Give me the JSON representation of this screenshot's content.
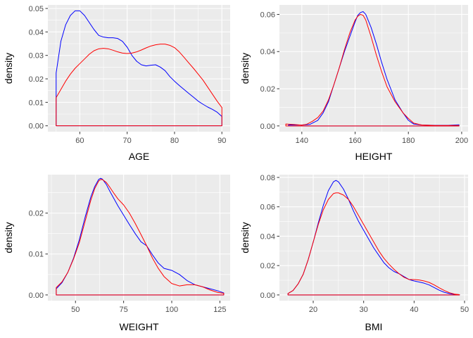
{
  "colors": {
    "panel_background": "#ebebeb",
    "grid_major": "#ffffff",
    "tick_text": "#4d4d4d",
    "series_blue": "#0000ff",
    "series_red": "#ff0000"
  },
  "chart_data": [
    {
      "type": "line",
      "subtype": "density",
      "xlabel": "AGE",
      "ylabel": "density",
      "xlim": [
        53.25,
        91.75
      ],
      "ylim": [
        -0.0025,
        0.0515
      ],
      "xticks": [
        60,
        70,
        80,
        90
      ],
      "yticks": [
        0,
        0.01,
        0.02,
        0.03,
        0.04,
        0.05
      ],
      "ytick_labels": [
        "0.00",
        "0.01",
        "0.02",
        "0.03",
        "0.04",
        "0.05"
      ],
      "grid": true,
      "series": [
        {
          "color": "#0000ff",
          "x": [
            55,
            56,
            57,
            58,
            59,
            60,
            61,
            62,
            63,
            64,
            65,
            66,
            67,
            68,
            69,
            70,
            71,
            72,
            73,
            74,
            75,
            76,
            77,
            78,
            79,
            80,
            81,
            82,
            83,
            84,
            85,
            86,
            87,
            88,
            89,
            90
          ],
          "y": [
            0.0225,
            0.036,
            0.043,
            0.047,
            0.049,
            0.049,
            0.047,
            0.044,
            0.041,
            0.0385,
            0.0378,
            0.0375,
            0.0375,
            0.0372,
            0.036,
            0.0335,
            0.03,
            0.0275,
            0.026,
            0.0255,
            0.0258,
            0.026,
            0.025,
            0.0235,
            0.021,
            0.019,
            0.0172,
            0.0155,
            0.0138,
            0.0122,
            0.0105,
            0.0092,
            0.008,
            0.007,
            0.0058,
            0.004
          ],
          "baseline": true
        },
        {
          "color": "#ff0000",
          "x": [
            55,
            56,
            57,
            58,
            59,
            60,
            61,
            62,
            63,
            64,
            65,
            66,
            67,
            68,
            69,
            70,
            71,
            72,
            73,
            74,
            75,
            76,
            77,
            78,
            79,
            80,
            81,
            82,
            83,
            84,
            85,
            86,
            87,
            88,
            89,
            90
          ],
          "y": [
            0.012,
            0.0155,
            0.019,
            0.022,
            0.0245,
            0.0265,
            0.0285,
            0.0305,
            0.032,
            0.0328,
            0.033,
            0.0328,
            0.0322,
            0.0315,
            0.031,
            0.0308,
            0.031,
            0.0315,
            0.0323,
            0.0332,
            0.034,
            0.0345,
            0.0348,
            0.0348,
            0.0343,
            0.0333,
            0.0315,
            0.0292,
            0.0268,
            0.0245,
            0.022,
            0.0195,
            0.0165,
            0.0135,
            0.0105,
            0.0078
          ],
          "baseline": true
        }
      ]
    },
    {
      "type": "line",
      "subtype": "density",
      "xlabel": "HEIGHT",
      "ylabel": "density",
      "xlim": [
        131.6,
        202.4
      ],
      "ylim": [
        -0.0031,
        0.0651
      ],
      "xticks": [
        140,
        160,
        180,
        200
      ],
      "yticks": [
        0,
        0.02,
        0.04,
        0.06
      ],
      "ytick_labels": [
        "0.00",
        "0.02",
        "0.04",
        "0.06"
      ],
      "grid": true,
      "series": [
        {
          "color": "#0000ff",
          "x": [
            135,
            140,
            143,
            146,
            148,
            150,
            152,
            154,
            156,
            158,
            160,
            161,
            162,
            163,
            164,
            166,
            168,
            170,
            172,
            175,
            178,
            180,
            182,
            185,
            190,
            195,
            199
          ],
          "y": [
            0.0005,
            0.0005,
            0.0008,
            0.003,
            0.007,
            0.013,
            0.022,
            0.031,
            0.04,
            0.048,
            0.056,
            0.0595,
            0.061,
            0.0615,
            0.06,
            0.053,
            0.044,
            0.034,
            0.025,
            0.014,
            0.007,
            0.003,
            0.001,
            0.0005,
            0.0003,
            0.0003,
            0.0006
          ],
          "baseline": true
        },
        {
          "color": "#ff0000",
          "x": [
            134,
            137,
            140,
            142,
            144,
            146,
            148,
            150,
            152,
            154,
            156,
            158,
            160,
            161,
            162,
            163,
            164,
            166,
            168,
            170,
            172,
            175,
            178,
            180,
            182,
            185,
            190,
            199
          ],
          "y": [
            0.001,
            0.0008,
            0.0004,
            0.001,
            0.0025,
            0.0045,
            0.008,
            0.014,
            0.022,
            0.031,
            0.041,
            0.05,
            0.057,
            0.059,
            0.06,
            0.0595,
            0.057,
            0.048,
            0.038,
            0.029,
            0.021,
            0.013,
            0.007,
            0.004,
            0.0015,
            0.0005,
            0.0002,
            0.0002
          ],
          "baseline": true
        }
      ]
    },
    {
      "type": "line",
      "subtype": "density",
      "xlabel": "WEIGHT",
      "ylabel": "density",
      "xlim": [
        35.65,
        130.35
      ],
      "ylim": [
        -0.0014,
        0.0294
      ],
      "xticks": [
        50,
        75,
        100,
        125
      ],
      "yticks": [
        0,
        0.01,
        0.02
      ],
      "ytick_labels": [
        "0.00",
        "0.01",
        "0.02"
      ],
      "grid": true,
      "series": [
        {
          "color": "#0000ff",
          "x": [
            40,
            43,
            46,
            49,
            52,
            55,
            58,
            60,
            62,
            63,
            64,
            66,
            68,
            70,
            72,
            75,
            78,
            81,
            84,
            87,
            90,
            93,
            96,
            100,
            104,
            108,
            112,
            116,
            120,
            124,
            127
          ],
          "y": [
            0.0015,
            0.003,
            0.0055,
            0.009,
            0.0135,
            0.019,
            0.024,
            0.0265,
            0.0282,
            0.0285,
            0.0283,
            0.027,
            0.0252,
            0.0235,
            0.0218,
            0.0195,
            0.0172,
            0.015,
            0.013,
            0.012,
            0.0098,
            0.0078,
            0.0065,
            0.006,
            0.005,
            0.0035,
            0.0025,
            0.002,
            0.0015,
            0.001,
            0.0005
          ],
          "baseline": true
        },
        {
          "color": "#ff0000",
          "x": [
            40,
            43,
            46,
            49,
            52,
            55,
            58,
            60,
            62,
            63,
            64,
            66,
            68,
            70,
            72,
            75,
            78,
            81,
            84,
            87,
            90,
            93,
            96,
            100,
            104,
            108,
            112,
            116,
            120,
            124,
            127
          ],
          "y": [
            0.0018,
            0.0032,
            0.0055,
            0.0088,
            0.0128,
            0.018,
            0.0232,
            0.026,
            0.0278,
            0.0282,
            0.0282,
            0.0275,
            0.0262,
            0.0248,
            0.0235,
            0.022,
            0.02,
            0.0175,
            0.0148,
            0.012,
            0.009,
            0.0065,
            0.0045,
            0.0028,
            0.0022,
            0.0025,
            0.0025,
            0.002,
            0.0012,
            0.0006,
            0.0004
          ],
          "baseline": true
        }
      ]
    },
    {
      "type": "line",
      "subtype": "density",
      "xlabel": "BMI",
      "ylabel": "density",
      "xlim": [
        13.3,
        50.7
      ],
      "ylim": [
        -0.0039,
        0.0819
      ],
      "xticks": [
        20,
        30,
        40,
        50
      ],
      "yticks": [
        0,
        0.02,
        0.04,
        0.06,
        0.08
      ],
      "ytick_labels": [
        "0.00",
        "0.02",
        "0.04",
        "0.06",
        "0.08"
      ],
      "grid": true,
      "series": [
        {
          "color": "#0000ff",
          "x": [
            15,
            16,
            17,
            18,
            19,
            20,
            21,
            22,
            23,
            24,
            24.5,
            25,
            26,
            27,
            28,
            29,
            30,
            31,
            32,
            33,
            34,
            35,
            36,
            37,
            38,
            39,
            40,
            41,
            42,
            43,
            44,
            45,
            46,
            47,
            48,
            49
          ],
          "y": [
            0.001,
            0.003,
            0.0075,
            0.014,
            0.024,
            0.036,
            0.049,
            0.061,
            0.071,
            0.077,
            0.078,
            0.077,
            0.072,
            0.065,
            0.057,
            0.05,
            0.044,
            0.038,
            0.032,
            0.027,
            0.022,
            0.0185,
            0.016,
            0.0145,
            0.0125,
            0.0105,
            0.0095,
            0.0088,
            0.008,
            0.0068,
            0.005,
            0.0032,
            0.0018,
            0.0009,
            0.0004,
            0.0002
          ],
          "baseline": true
        },
        {
          "color": "#ff0000",
          "x": [
            15,
            16,
            17,
            18,
            19,
            20,
            21,
            22,
            23,
            24,
            24.5,
            25,
            26,
            27,
            28,
            29,
            30,
            31,
            32,
            33,
            34,
            35,
            36,
            37,
            38,
            39,
            40,
            41,
            42,
            43,
            44,
            45,
            46,
            47,
            48,
            49
          ],
          "y": [
            0.001,
            0.003,
            0.0075,
            0.014,
            0.024,
            0.036,
            0.048,
            0.058,
            0.065,
            0.069,
            0.0695,
            0.0695,
            0.068,
            0.065,
            0.06,
            0.054,
            0.048,
            0.042,
            0.036,
            0.03,
            0.025,
            0.021,
            0.0175,
            0.0145,
            0.012,
            0.0105,
            0.0105,
            0.0102,
            0.0095,
            0.0085,
            0.0068,
            0.0048,
            0.003,
            0.0015,
            0.0006,
            0.0002
          ],
          "baseline": true
        }
      ]
    }
  ]
}
